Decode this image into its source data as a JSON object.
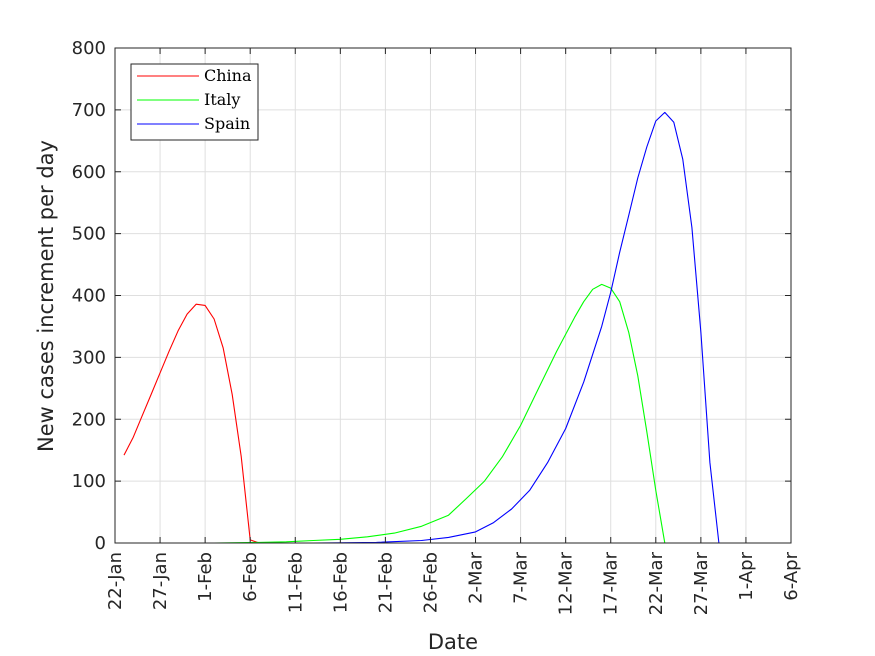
{
  "chart_data": {
    "type": "line",
    "xlabel": "Date",
    "ylabel": "New cases increment per day",
    "ylim": [
      0,
      800
    ],
    "yticks": [
      0,
      100,
      200,
      300,
      400,
      500,
      600,
      700,
      800
    ],
    "xlim": [
      "2020-01-22",
      "2020-04-06"
    ],
    "xticks": [
      {
        "date": "2020-01-22",
        "label": "22-Jan"
      },
      {
        "date": "2020-01-27",
        "label": "27-Jan"
      },
      {
        "date": "2020-02-01",
        "label": "1-Feb"
      },
      {
        "date": "2020-02-06",
        "label": "6-Feb"
      },
      {
        "date": "2020-02-11",
        "label": "11-Feb"
      },
      {
        "date": "2020-02-16",
        "label": "16-Feb"
      },
      {
        "date": "2020-02-21",
        "label": "21-Feb"
      },
      {
        "date": "2020-02-26",
        "label": "26-Feb"
      },
      {
        "date": "2020-03-02",
        "label": "2-Mar"
      },
      {
        "date": "2020-03-07",
        "label": "7-Mar"
      },
      {
        "date": "2020-03-12",
        "label": "12-Mar"
      },
      {
        "date": "2020-03-17",
        "label": "17-Mar"
      },
      {
        "date": "2020-03-22",
        "label": "22-Mar"
      },
      {
        "date": "2020-03-27",
        "label": "27-Mar"
      },
      {
        "date": "2020-04-01",
        "label": "1-Apr"
      },
      {
        "date": "2020-04-06",
        "label": "6-Apr"
      }
    ],
    "grid": true,
    "legend_position": "top-left",
    "series": [
      {
        "name": "China",
        "color": "#ff0000",
        "points": [
          [
            "2020-01-23",
            142
          ],
          [
            "2020-01-24",
            170
          ],
          [
            "2020-01-25",
            205
          ],
          [
            "2020-01-26",
            240
          ],
          [
            "2020-01-27",
            275
          ],
          [
            "2020-01-28",
            310
          ],
          [
            "2020-01-29",
            343
          ],
          [
            "2020-01-30",
            370
          ],
          [
            "2020-01-31",
            386
          ],
          [
            "2020-02-01",
            384
          ],
          [
            "2020-02-02",
            362
          ],
          [
            "2020-02-03",
            315
          ],
          [
            "2020-02-04",
            240
          ],
          [
            "2020-02-05",
            140
          ],
          [
            "2020-02-06",
            5
          ],
          [
            "2020-02-07",
            0
          ],
          [
            "2020-02-12",
            0
          ],
          [
            "2020-02-17",
            0
          ],
          [
            "2020-02-22",
            0
          ],
          [
            "2020-02-27",
            0
          ],
          [
            "2020-03-03",
            0
          ],
          [
            "2020-03-08",
            0
          ],
          [
            "2020-03-13",
            0
          ],
          [
            "2020-03-18",
            0
          ],
          [
            "2020-03-23",
            0
          ],
          [
            "2020-03-25",
            0
          ],
          [
            "2020-03-30",
            0
          ],
          [
            "2020-04-02",
            0
          ]
        ]
      },
      {
        "name": "Italy",
        "color": "#00ff00",
        "points": [
          [
            "2020-01-23",
            0
          ],
          [
            "2020-01-28",
            0
          ],
          [
            "2020-02-02",
            0
          ],
          [
            "2020-02-07",
            1
          ],
          [
            "2020-02-10",
            2
          ],
          [
            "2020-02-13",
            4
          ],
          [
            "2020-02-16",
            6
          ],
          [
            "2020-02-19",
            10
          ],
          [
            "2020-02-22",
            16
          ],
          [
            "2020-02-25",
            27
          ],
          [
            "2020-02-28",
            45
          ],
          [
            "2020-03-01",
            72
          ],
          [
            "2020-03-03",
            100
          ],
          [
            "2020-03-05",
            140
          ],
          [
            "2020-03-07",
            190
          ],
          [
            "2020-03-09",
            250
          ],
          [
            "2020-03-11",
            310
          ],
          [
            "2020-03-13",
            365
          ],
          [
            "2020-03-14",
            390
          ],
          [
            "2020-03-15",
            410
          ],
          [
            "2020-03-16",
            418
          ],
          [
            "2020-03-17",
            412
          ],
          [
            "2020-03-18",
            390
          ],
          [
            "2020-03-19",
            340
          ],
          [
            "2020-03-20",
            270
          ],
          [
            "2020-03-21",
            180
          ],
          [
            "2020-03-22",
            85
          ],
          [
            "2020-03-23",
            0
          ],
          [
            "2020-03-24",
            0
          ]
        ]
      },
      {
        "name": "Spain",
        "color": "#0000ff",
        "points": [
          [
            "2020-01-23",
            0
          ],
          [
            "2020-01-30",
            0
          ],
          [
            "2020-02-06",
            0
          ],
          [
            "2020-02-13",
            0
          ],
          [
            "2020-02-20",
            1
          ],
          [
            "2020-02-25",
            4
          ],
          [
            "2020-02-28",
            9
          ],
          [
            "2020-03-02",
            18
          ],
          [
            "2020-03-04",
            33
          ],
          [
            "2020-03-06",
            55
          ],
          [
            "2020-03-08",
            85
          ],
          [
            "2020-03-10",
            130
          ],
          [
            "2020-03-12",
            185
          ],
          [
            "2020-03-14",
            260
          ],
          [
            "2020-03-16",
            350
          ],
          [
            "2020-03-17",
            405
          ],
          [
            "2020-03-18",
            470
          ],
          [
            "2020-03-19",
            530
          ],
          [
            "2020-03-20",
            590
          ],
          [
            "2020-03-21",
            640
          ],
          [
            "2020-03-22",
            682
          ],
          [
            "2020-03-23",
            696
          ],
          [
            "2020-03-24",
            680
          ],
          [
            "2020-03-25",
            620
          ],
          [
            "2020-03-26",
            510
          ],
          [
            "2020-03-27",
            340
          ],
          [
            "2020-03-28",
            130
          ],
          [
            "2020-03-29",
            0
          ],
          [
            "2020-03-30",
            0
          ]
        ]
      }
    ]
  }
}
